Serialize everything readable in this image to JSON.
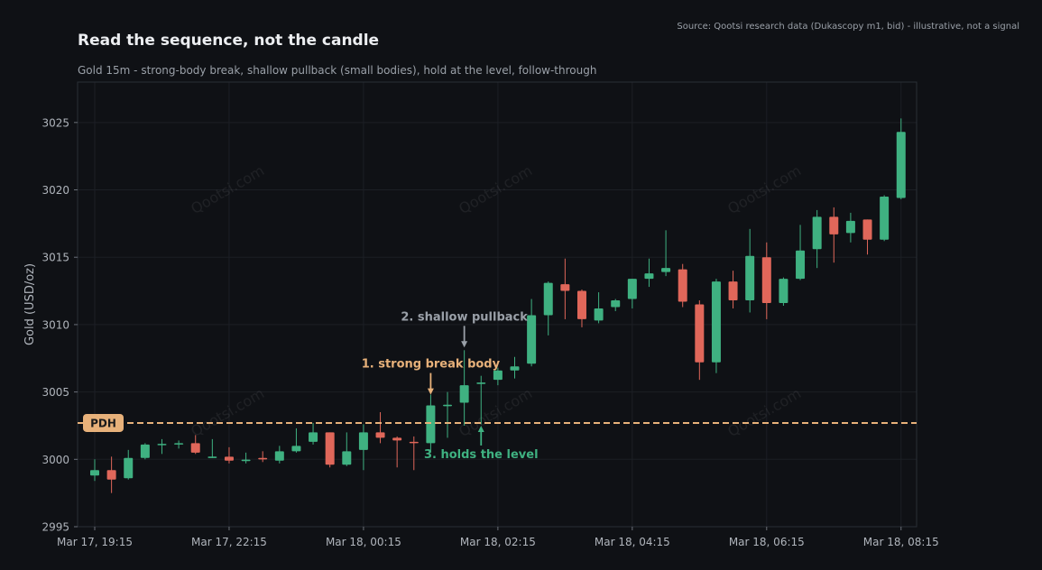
{
  "title": "Read the sequence, not the candle",
  "subtitle": "Gold 15m - strong-body break, shallow pullback (small bodies), hold at the level, follow-through",
  "source": "Source: Qootsi research data (Dukascopy m1, bid) - illustrative, not a signal",
  "watermark": "Qootsi.com",
  "colors": {
    "up": "#3fb181",
    "down": "#e0675a",
    "pdh": "#e7b17a",
    "annotation_gray": "#9aa0a8",
    "background": "#0f1115"
  },
  "chart_data": {
    "type": "candlestick",
    "ylabel": "Gold (USD/oz)",
    "ylim": [
      2995,
      3028
    ],
    "yticks": [
      2995,
      3000,
      3005,
      3010,
      3015,
      3020,
      3025
    ],
    "grid": true,
    "xticks": [
      {
        "index": 0,
        "label": "Mar 17, 19:15"
      },
      {
        "index": 8,
        "label": "Mar 17, 22:15"
      },
      {
        "index": 16,
        "label": "Mar 18, 00:15"
      },
      {
        "index": 24,
        "label": "Mar 18, 02:15"
      },
      {
        "index": 32,
        "label": "Mar 18, 04:15"
      },
      {
        "index": 40,
        "label": "Mar 18, 06:15"
      },
      {
        "index": 48,
        "label": "Mar 18, 08:15"
      }
    ],
    "pdh": {
      "label": "PDH",
      "value": 3002.7
    },
    "candles": [
      [
        2998.8,
        3000.0,
        2998.4,
        2999.2
      ],
      [
        2999.2,
        3000.2,
        2997.5,
        2998.5
      ],
      [
        2998.6,
        3000.7,
        2998.5,
        3000.1
      ],
      [
        3000.1,
        3001.2,
        3000.0,
        3001.1
      ],
      [
        3001.1,
        3001.5,
        3000.4,
        3001.1
      ],
      [
        3001.1,
        3001.4,
        3000.8,
        3001.2
      ],
      [
        3001.2,
        3001.8,
        3000.4,
        3000.5
      ],
      [
        3000.1,
        3001.5,
        3000.1,
        3000.2
      ],
      [
        3000.2,
        3000.9,
        2999.7,
        2999.9
      ],
      [
        2999.9,
        3000.5,
        2999.7,
        2999.95
      ],
      [
        3000.1,
        3000.6,
        2999.8,
        3000.0
      ],
      [
        2999.9,
        3001.0,
        2999.7,
        3000.6
      ],
      [
        3000.6,
        3002.3,
        3000.5,
        3001.0
      ],
      [
        3001.3,
        3002.7,
        3001.1,
        3002.0
      ],
      [
        3002.0,
        3002.0,
        2999.4,
        2999.6
      ],
      [
        2999.6,
        3002.0,
        2999.5,
        3000.6
      ],
      [
        3000.7,
        3002.6,
        2999.2,
        3002.0
      ],
      [
        3002.0,
        3003.5,
        3001.2,
        3001.6
      ],
      [
        3001.6,
        3001.7,
        2999.4,
        3001.4
      ],
      [
        3001.3,
        3001.7,
        2999.2,
        3001.2
      ],
      [
        3001.2,
        3004.8,
        3000.5,
        3004.0
      ],
      [
        3004.0,
        3005.0,
        3001.6,
        3004.0
      ],
      [
        3004.2,
        3008.1,
        3002.5,
        3005.5
      ],
      [
        3005.6,
        3006.2,
        3002.6,
        3005.7
      ],
      [
        3005.9,
        3006.8,
        3005.5,
        3006.6
      ],
      [
        3006.6,
        3007.6,
        3006.0,
        3006.9
      ],
      [
        3007.1,
        3011.9,
        3006.9,
        3010.7
      ],
      [
        3010.7,
        3013.2,
        3009.2,
        3013.1
      ],
      [
        3013.0,
        3014.9,
        3010.4,
        3012.5
      ],
      [
        3012.5,
        3012.6,
        3009.8,
        3010.4
      ],
      [
        3010.3,
        3012.4,
        3010.1,
        3011.2
      ],
      [
        3011.3,
        3011.9,
        3011.0,
        3011.8
      ],
      [
        3011.9,
        3013.4,
        3011.2,
        3013.4
      ],
      [
        3013.4,
        3014.9,
        3012.8,
        3013.8
      ],
      [
        3013.9,
        3017.0,
        3013.6,
        3014.2
      ],
      [
        3014.1,
        3014.5,
        3011.3,
        3011.7
      ],
      [
        3011.5,
        3011.8,
        3005.9,
        3007.2
      ],
      [
        3007.2,
        3013.4,
        3006.4,
        3013.2
      ],
      [
        3013.2,
        3014.0,
        3011.2,
        3011.8
      ],
      [
        3011.8,
        3017.1,
        3010.9,
        3015.1
      ],
      [
        3015.0,
        3016.1,
        3010.4,
        3011.6
      ],
      [
        3011.6,
        3013.5,
        3011.4,
        3013.4
      ],
      [
        3013.4,
        3017.4,
        3013.3,
        3015.5
      ],
      [
        3015.6,
        3018.5,
        3014.2,
        3018.0
      ],
      [
        3018.0,
        3018.7,
        3014.6,
        3016.7
      ],
      [
        3016.8,
        3018.3,
        3016.1,
        3017.7
      ],
      [
        3017.8,
        3017.8,
        3015.2,
        3016.3
      ],
      [
        3016.3,
        3019.6,
        3016.2,
        3019.5
      ],
      [
        3019.4,
        3025.3,
        3019.3,
        3024.3
      ]
    ],
    "annotations": [
      {
        "text": "1. strong break body",
        "index": 20,
        "value": 3004.8,
        "direction": "down",
        "color": "#e7b17a"
      },
      {
        "text": "2. shallow pullback",
        "index": 22,
        "value": 3008.3,
        "direction": "down",
        "color": "#9aa0a8"
      },
      {
        "text": "3. holds the level",
        "index": 23,
        "value": 3002.5,
        "direction": "up",
        "color": "#3fb181"
      }
    ]
  }
}
